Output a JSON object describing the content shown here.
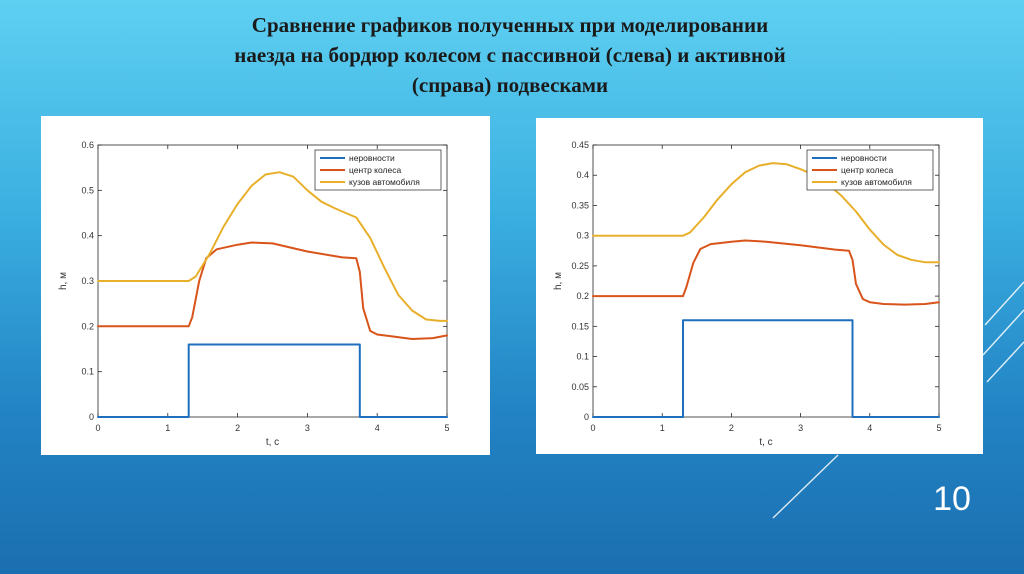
{
  "slide": {
    "title_lines": [
      "Сравнение графиков полученных при моделировании",
      "наезда на бордюр колесом с пассивной (слева) и активной",
      "(справа) подвесками"
    ],
    "page_number": "10"
  },
  "colors": {
    "series_blue": "#1f6fbf",
    "series_orange": "#d9541a",
    "series_yellow": "#e8b02a"
  },
  "chart_data": [
    {
      "type": "line",
      "title": "",
      "xlabel": "t, c",
      "ylabel": "h, м",
      "xlim": [
        0,
        5
      ],
      "ylim": [
        0,
        0.6
      ],
      "xticks": [
        "0",
        "1",
        "2",
        "3",
        "4",
        "5"
      ],
      "yticks": [
        "0",
        "0.1",
        "0.2",
        "0.3",
        "0.4",
        "0.5",
        "0.6"
      ],
      "legend_position": "top-right",
      "series": [
        {
          "name": "неровности",
          "color": "#1f6fbf",
          "x": [
            0,
            1.3,
            1.3,
            3.75,
            3.75,
            5
          ],
          "y": [
            0,
            0,
            0.16,
            0.16,
            0,
            0
          ]
        },
        {
          "name": "центр колеса",
          "color": "#d9541a",
          "x": [
            0,
            1.3,
            1.35,
            1.45,
            1.55,
            1.7,
            2.0,
            2.2,
            2.5,
            3.0,
            3.5,
            3.7,
            3.75,
            3.8,
            3.9,
            4.0,
            4.2,
            4.5,
            4.8,
            5.0
          ],
          "y": [
            0.2,
            0.2,
            0.22,
            0.3,
            0.35,
            0.37,
            0.38,
            0.385,
            0.383,
            0.365,
            0.352,
            0.35,
            0.32,
            0.24,
            0.19,
            0.182,
            0.178,
            0.172,
            0.174,
            0.18
          ]
        },
        {
          "name": "кузов автомобиля",
          "color": "#e8b02a",
          "x": [
            0,
            1.3,
            1.4,
            1.6,
            1.8,
            2.0,
            2.2,
            2.4,
            2.6,
            2.8,
            3.0,
            3.2,
            3.4,
            3.7,
            3.9,
            4.1,
            4.3,
            4.5,
            4.7,
            4.9,
            5.0
          ],
          "y": [
            0.3,
            0.3,
            0.31,
            0.36,
            0.42,
            0.47,
            0.51,
            0.535,
            0.54,
            0.53,
            0.5,
            0.475,
            0.46,
            0.44,
            0.395,
            0.33,
            0.27,
            0.235,
            0.215,
            0.212,
            0.212
          ]
        }
      ]
    },
    {
      "type": "line",
      "title": "",
      "xlabel": "t, c",
      "ylabel": "h, м",
      "xlim": [
        0,
        5
      ],
      "ylim": [
        0,
        0.45
      ],
      "xticks": [
        "0",
        "1",
        "2",
        "3",
        "4",
        "5"
      ],
      "yticks": [
        "0",
        "0.05",
        "0.1",
        "0.15",
        "0.2",
        "0.25",
        "0.3",
        "0.35",
        "0.4",
        "0.45"
      ],
      "legend_position": "top-right",
      "series": [
        {
          "name": "неровности",
          "color": "#1f6fbf",
          "x": [
            0,
            1.3,
            1.3,
            3.75,
            3.75,
            5
          ],
          "y": [
            0,
            0,
            0.16,
            0.16,
            0,
            0
          ]
        },
        {
          "name": "центр колеса",
          "color": "#d9541a",
          "x": [
            0,
            1.3,
            1.35,
            1.45,
            1.55,
            1.7,
            2.0,
            2.2,
            2.5,
            3.0,
            3.5,
            3.7,
            3.75,
            3.8,
            3.9,
            4.0,
            4.2,
            4.5,
            4.8,
            5.0
          ],
          "y": [
            0.2,
            0.2,
            0.215,
            0.255,
            0.278,
            0.286,
            0.29,
            0.292,
            0.29,
            0.284,
            0.277,
            0.275,
            0.26,
            0.22,
            0.195,
            0.19,
            0.187,
            0.186,
            0.187,
            0.19
          ]
        },
        {
          "name": "кузов автомобиля",
          "color": "#e8b02a",
          "x": [
            0,
            1.3,
            1.4,
            1.6,
            1.8,
            2.0,
            2.2,
            2.4,
            2.6,
            2.8,
            3.0,
            3.2,
            3.4,
            3.6,
            3.8,
            4.0,
            4.2,
            4.4,
            4.6,
            4.8,
            5.0
          ],
          "y": [
            0.3,
            0.3,
            0.305,
            0.33,
            0.36,
            0.385,
            0.405,
            0.416,
            0.42,
            0.418,
            0.41,
            0.4,
            0.385,
            0.365,
            0.34,
            0.31,
            0.285,
            0.268,
            0.26,
            0.256,
            0.256
          ]
        }
      ]
    }
  ]
}
